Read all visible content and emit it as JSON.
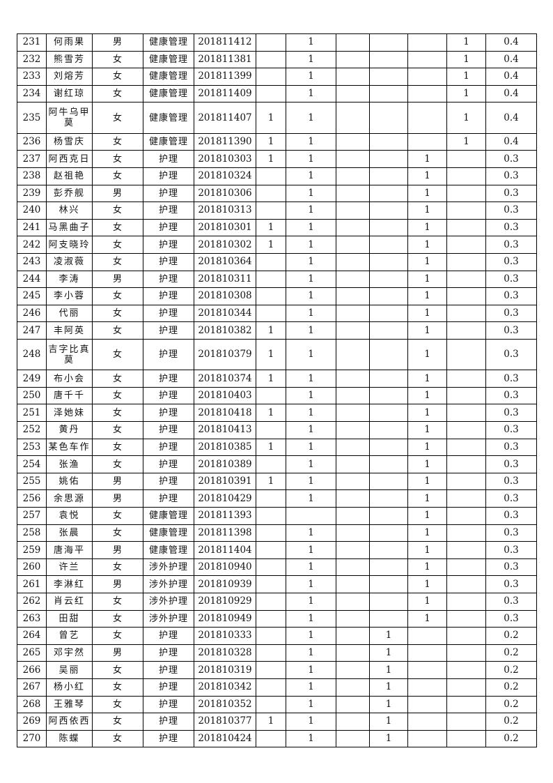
{
  "table": {
    "columns": [
      "no",
      "name",
      "gender",
      "major",
      "student_id",
      "c1",
      "c2",
      "c3",
      "c4",
      "c5",
      "c6",
      "score"
    ],
    "rows": [
      [
        "231",
        "何雨果",
        "男",
        "健康管理",
        "201811412",
        "",
        "1",
        "",
        "",
        "",
        "1",
        "0.4"
      ],
      [
        "232",
        "熊雪芳",
        "女",
        "健康管理",
        "201811381",
        "",
        "1",
        "",
        "",
        "",
        "1",
        "0.4"
      ],
      [
        "233",
        "刘熔芳",
        "女",
        "健康管理",
        "201811399",
        "",
        "1",
        "",
        "",
        "",
        "1",
        "0.4"
      ],
      [
        "234",
        "谢红琼",
        "女",
        "健康管理",
        "201811409",
        "",
        "1",
        "",
        "",
        "",
        "1",
        "0.4"
      ],
      [
        "235",
        "阿牛乌甲莫",
        "女",
        "健康管理",
        "201811407",
        "1",
        "1",
        "",
        "",
        "",
        "1",
        "0.4"
      ],
      [
        "236",
        "杨雪庆",
        "女",
        "健康管理",
        "201811390",
        "1",
        "1",
        "",
        "",
        "",
        "1",
        "0.4"
      ],
      [
        "237",
        "阿西克日",
        "女",
        "护理",
        "201810303",
        "1",
        "1",
        "",
        "",
        "1",
        "",
        "0.3"
      ],
      [
        "238",
        "赵祖艳",
        "女",
        "护理",
        "201810324",
        "",
        "1",
        "",
        "",
        "1",
        "",
        "0.3"
      ],
      [
        "239",
        "彭乔舰",
        "男",
        "护理",
        "201810306",
        "",
        "1",
        "",
        "",
        "1",
        "",
        "0.3"
      ],
      [
        "240",
        "林兴",
        "女",
        "护理",
        "201810313",
        "",
        "1",
        "",
        "",
        "1",
        "",
        "0.3"
      ],
      [
        "241",
        "马黑曲子",
        "女",
        "护理",
        "201810301",
        "1",
        "1",
        "",
        "",
        "1",
        "",
        "0.3"
      ],
      [
        "242",
        "阿支晓玲",
        "女",
        "护理",
        "201810302",
        "1",
        "1",
        "",
        "",
        "1",
        "",
        "0.3"
      ],
      [
        "243",
        "凌淑薇",
        "女",
        "护理",
        "201810364",
        "",
        "1",
        "",
        "",
        "1",
        "",
        "0.3"
      ],
      [
        "244",
        "李涛",
        "男",
        "护理",
        "201810311",
        "",
        "1",
        "",
        "",
        "1",
        "",
        "0.3"
      ],
      [
        "245",
        "李小蓉",
        "女",
        "护理",
        "201810308",
        "",
        "1",
        "",
        "",
        "1",
        "",
        "0.3"
      ],
      [
        "246",
        "代丽",
        "女",
        "护理",
        "201810344",
        "",
        "1",
        "",
        "",
        "1",
        "",
        "0.3"
      ],
      [
        "247",
        "丰阿英",
        "女",
        "护理",
        "201810382",
        "1",
        "1",
        "",
        "",
        "1",
        "",
        "0.3"
      ],
      [
        "248",
        "吉字比真莫",
        "女",
        "护理",
        "201810379",
        "1",
        "1",
        "",
        "",
        "1",
        "",
        "0.3"
      ],
      [
        "249",
        "布小会",
        "女",
        "护理",
        "201810374",
        "1",
        "1",
        "",
        "",
        "1",
        "",
        "0.3"
      ],
      [
        "250",
        "唐千千",
        "女",
        "护理",
        "201810403",
        "",
        "1",
        "",
        "",
        "1",
        "",
        "0.3"
      ],
      [
        "251",
        "泽她妹",
        "女",
        "护理",
        "201810418",
        "1",
        "1",
        "",
        "",
        "1",
        "",
        "0.3"
      ],
      [
        "252",
        "黄丹",
        "女",
        "护理",
        "201810413",
        "",
        "1",
        "",
        "",
        "1",
        "",
        "0.3"
      ],
      [
        "253",
        "某色车作",
        "女",
        "护理",
        "201810385",
        "1",
        "1",
        "",
        "",
        "1",
        "",
        "0.3"
      ],
      [
        "254",
        "张渔",
        "女",
        "护理",
        "201810389",
        "",
        "1",
        "",
        "",
        "1",
        "",
        "0.3"
      ],
      [
        "255",
        "姚佑",
        "男",
        "护理",
        "201810391",
        "1",
        "1",
        "",
        "",
        "1",
        "",
        "0.3"
      ],
      [
        "256",
        "余思源",
        "男",
        "护理",
        "201810429",
        "",
        "1",
        "",
        "",
        "1",
        "",
        "0.3"
      ],
      [
        "257",
        "袁悦",
        "女",
        "健康管理",
        "201811393",
        "",
        "",
        "",
        "",
        "1",
        "",
        "0.3"
      ],
      [
        "258",
        "张晨",
        "女",
        "健康管理",
        "201811398",
        "",
        "1",
        "",
        "",
        "1",
        "",
        "0.3"
      ],
      [
        "259",
        "唐海平",
        "男",
        "健康管理",
        "201811404",
        "",
        "1",
        "",
        "",
        "1",
        "",
        "0.3"
      ],
      [
        "260",
        "许兰",
        "女",
        "涉外护理",
        "201810940",
        "",
        "1",
        "",
        "",
        "1",
        "",
        "0.3"
      ],
      [
        "261",
        "李淋红",
        "男",
        "涉外护理",
        "201810939",
        "",
        "1",
        "",
        "",
        "1",
        "",
        "0.3"
      ],
      [
        "262",
        "肖云红",
        "女",
        "涉外护理",
        "201810929",
        "",
        "1",
        "",
        "",
        "1",
        "",
        "0.3"
      ],
      [
        "263",
        "田甜",
        "女",
        "涉外护理",
        "201810949",
        "",
        "1",
        "",
        "",
        "1",
        "",
        "0.3"
      ],
      [
        "264",
        "曾艺",
        "女",
        "护理",
        "201810333",
        "",
        "1",
        "",
        "1",
        "",
        "",
        "0.2"
      ],
      [
        "265",
        "邓宇然",
        "男",
        "护理",
        "201810328",
        "",
        "1",
        "",
        "1",
        "",
        "",
        "0.2"
      ],
      [
        "266",
        "吴丽",
        "女",
        "护理",
        "201810319",
        "",
        "1",
        "",
        "1",
        "",
        "",
        "0.2"
      ],
      [
        "267",
        "杨小红",
        "女",
        "护理",
        "201810342",
        "",
        "1",
        "",
        "1",
        "",
        "",
        "0.2"
      ],
      [
        "268",
        "王雅琴",
        "女",
        "护理",
        "201810352",
        "",
        "1",
        "",
        "1",
        "",
        "",
        "0.2"
      ],
      [
        "269",
        "阿西依西",
        "女",
        "护理",
        "201810377",
        "1",
        "1",
        "",
        "1",
        "",
        "",
        "0.2"
      ],
      [
        "270",
        "陈蝶",
        "女",
        "护理",
        "201810424",
        "",
        "1",
        "",
        "1",
        "",
        "",
        "0.2"
      ]
    ]
  }
}
